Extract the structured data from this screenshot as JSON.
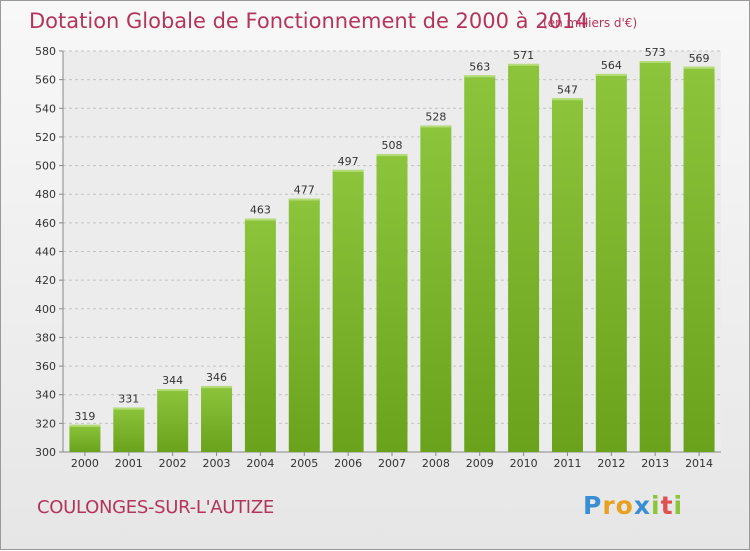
{
  "chart_data": {
    "type": "bar",
    "title": "Dotation Globale de Fonctionnement de 2000 à 2014",
    "subtitle": "(en milliers d'€)",
    "categories": [
      "2000",
      "2001",
      "2002",
      "2003",
      "2004",
      "2005",
      "2006",
      "2007",
      "2008",
      "2009",
      "2010",
      "2011",
      "2012",
      "2013",
      "2014"
    ],
    "values": [
      319,
      331,
      344,
      346,
      463,
      477,
      497,
      508,
      528,
      563,
      571,
      547,
      564,
      573,
      569
    ],
    "ylim": [
      300,
      580
    ],
    "yticks": [
      300,
      320,
      340,
      360,
      380,
      400,
      420,
      440,
      460,
      480,
      500,
      520,
      540,
      560,
      580
    ],
    "grid": true,
    "bar_color": "#8cc43c",
    "bar_color_dark": "#6aa21c"
  },
  "footer": {
    "commune": "COULONGES-SUR-L'AUTIZE"
  },
  "logo": {
    "letters": [
      "P",
      "r",
      "o",
      "x",
      "i",
      "t",
      "i"
    ],
    "colors": [
      "#3a8fd4",
      "#e8a020",
      "#e8a020",
      "#3a8fd4",
      "#8cc43c",
      "#e05050",
      "#8cc43c"
    ]
  }
}
